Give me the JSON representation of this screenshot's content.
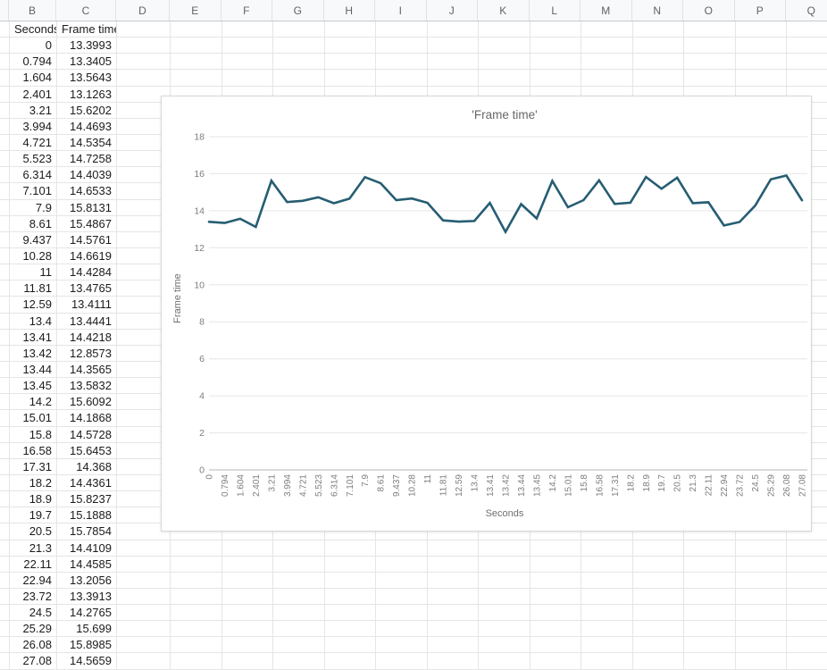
{
  "sheet": {
    "column_headers": [
      "B",
      "C",
      "D",
      "E",
      "F",
      "G",
      "H",
      "I",
      "J",
      "K",
      "L",
      "M",
      "N",
      "O",
      "P",
      "Q"
    ],
    "data_headers": [
      "Seconds",
      "Frame time"
    ],
    "rows": [
      [
        "0",
        "13.3993"
      ],
      [
        "0.794",
        "13.3405"
      ],
      [
        "1.604",
        "13.5643"
      ],
      [
        "2.401",
        "13.1263"
      ],
      [
        "3.21",
        "15.6202"
      ],
      [
        "3.994",
        "14.4693"
      ],
      [
        "4.721",
        "14.5354"
      ],
      [
        "5.523",
        "14.7258"
      ],
      [
        "6.314",
        "14.4039"
      ],
      [
        "7.101",
        "14.6533"
      ],
      [
        "7.9",
        "15.8131"
      ],
      [
        "8.61",
        "15.4867"
      ],
      [
        "9.437",
        "14.5761"
      ],
      [
        "10.28",
        "14.6619"
      ],
      [
        "11",
        "14.4284"
      ],
      [
        "11.81",
        "13.4765"
      ],
      [
        "12.59",
        "13.4111"
      ],
      [
        "13.4",
        "13.4441"
      ],
      [
        "13.41",
        "14.4218"
      ],
      [
        "13.42",
        "12.8573"
      ],
      [
        "13.44",
        "14.3565"
      ],
      [
        "13.45",
        "13.5832"
      ],
      [
        "14.2",
        "15.6092"
      ],
      [
        "15.01",
        "14.1868"
      ],
      [
        "15.8",
        "14.5728"
      ],
      [
        "16.58",
        "15.6453"
      ],
      [
        "17.31",
        "14.368"
      ],
      [
        "18.2",
        "14.4361"
      ],
      [
        "18.9",
        "15.8237"
      ],
      [
        "19.7",
        "15.1888"
      ],
      [
        "20.5",
        "15.7854"
      ],
      [
        "21.3",
        "14.4109"
      ],
      [
        "22.11",
        "14.4585"
      ],
      [
        "22.94",
        "13.2056"
      ],
      [
        "23.72",
        "13.3913"
      ],
      [
        "24.5",
        "14.2765"
      ],
      [
        "25.29",
        "15.699"
      ],
      [
        "26.08",
        "15.8985"
      ],
      [
        "27.08",
        "14.5659"
      ]
    ]
  },
  "chart_data": {
    "type": "line",
    "title": "'Frame time'",
    "xlabel": "Seconds",
    "ylabel": "Frame time",
    "x": [
      "0",
      "0.794",
      "1.604",
      "2.401",
      "3.21",
      "3.994",
      "4.721",
      "5.523",
      "6.314",
      "7.101",
      "7.9",
      "8.61",
      "9.437",
      "10.28",
      "11",
      "11.81",
      "12.59",
      "13.4",
      "13.41",
      "13.42",
      "13.44",
      "13.45",
      "14.2",
      "15.01",
      "15.8",
      "16.58",
      "17.31",
      "18.2",
      "18.9",
      "19.7",
      "20.5",
      "21.3",
      "22.11",
      "22.94",
      "23.72",
      "24.5",
      "25.29",
      "26.08",
      "27.08"
    ],
    "series": [
      {
        "name": "Frame time",
        "values": [
          13.3993,
          13.3405,
          13.5643,
          13.1263,
          15.6202,
          14.4693,
          14.5354,
          14.7258,
          14.4039,
          14.6533,
          15.8131,
          15.4867,
          14.5761,
          14.6619,
          14.4284,
          13.4765,
          13.4111,
          13.4441,
          14.4218,
          12.8573,
          14.3565,
          13.5832,
          15.6092,
          14.1868,
          14.5728,
          15.6453,
          14.368,
          14.4361,
          15.8237,
          15.1888,
          15.7854,
          14.4109,
          14.4585,
          13.2056,
          13.3913,
          14.2765,
          15.699,
          15.8985,
          14.5659
        ]
      }
    ],
    "ylim": [
      0,
      18
    ],
    "yticks": [
      0,
      2,
      4,
      6,
      8,
      10,
      12,
      14,
      16,
      18
    ],
    "grid": true,
    "legend": "none",
    "line_color": "#265d72",
    "gridline_color": "#e6e6e6",
    "baseline_color": "#cdcdcd"
  }
}
